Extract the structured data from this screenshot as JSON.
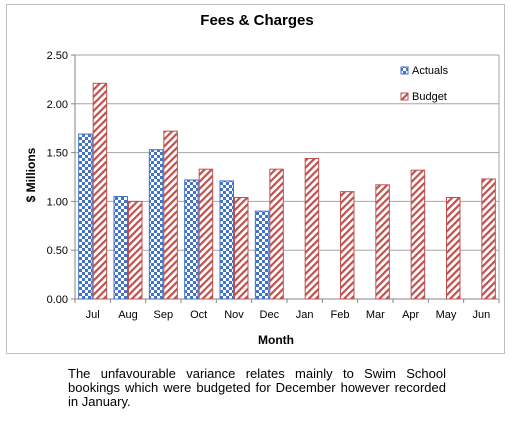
{
  "chart_data": {
    "type": "bar",
    "title": "Fees & Charges",
    "xlabel": "Month",
    "ylabel": "$ Millions",
    "ylim": [
      0,
      2.5
    ],
    "yticks": [
      "0.00",
      "0.50",
      "1.00",
      "1.50",
      "2.00",
      "2.50"
    ],
    "grid": true,
    "legend_position": "top-right",
    "categories": [
      "Jul",
      "Aug",
      "Sep",
      "Oct",
      "Nov",
      "Dec",
      "Jan",
      "Feb",
      "Mar",
      "Apr",
      "May",
      "Jun"
    ],
    "series": [
      {
        "name": "Actuals",
        "color": "#4472c4",
        "pattern": "checker",
        "values": [
          1.69,
          1.05,
          1.53,
          1.22,
          1.21,
          0.9,
          null,
          null,
          null,
          null,
          null,
          null
        ]
      },
      {
        "name": "Budget",
        "color": "#c0504d",
        "pattern": "diagonal-hatch",
        "values": [
          2.21,
          1.0,
          1.72,
          1.33,
          1.04,
          1.33,
          1.44,
          1.1,
          1.17,
          1.32,
          1.04,
          1.23
        ]
      }
    ]
  },
  "caption": "The unfavourable variance relates mainly to Swim School bookings which were budgeted for December however recorded in January."
}
